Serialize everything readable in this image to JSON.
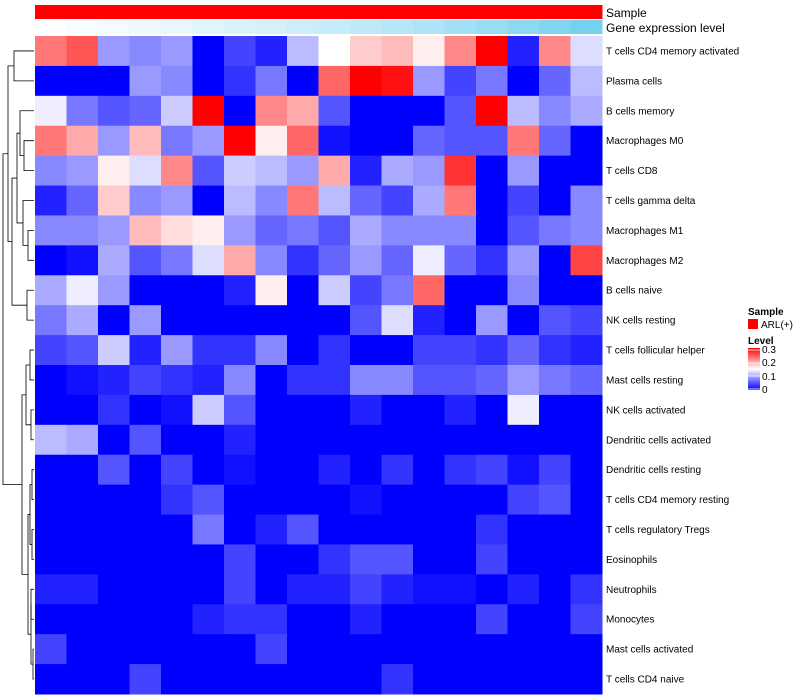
{
  "chart_data": {
    "type": "heatmap",
    "title": "",
    "annotations": [
      {
        "name": "Sample",
        "kind": "categorical",
        "value": "ARL(+)",
        "color": "#ff0000"
      },
      {
        "name": "Gene expression level",
        "kind": "continuous",
        "low_color": "#ffffff",
        "high_color": "#66ccee",
        "values": [
          0.02,
          0.05,
          0.08,
          0.12,
          0.16,
          0.2,
          0.24,
          0.28,
          0.33,
          0.38,
          0.43,
          0.48,
          0.53,
          0.6,
          0.67,
          0.74,
          0.82,
          0.9
        ]
      }
    ],
    "rows": [
      "T cells CD4 memory activated",
      "Plasma cells",
      "B cells memory",
      "Macrophages M0",
      "T cells CD8",
      "T cells gamma delta",
      "Macrophages M1",
      "Macrophages M2",
      "B cells naive",
      "NK cells resting",
      "T cells follicular helper",
      "Mast cells resting",
      "NK cells activated",
      "Dendritic cells activated",
      "Dendritic cells resting",
      "T cells CD4 memory resting",
      "T cells regulatory  Tregs",
      "Eosinophils",
      "Neutrophils",
      "Monocytes",
      "Mast cells activated",
      "T cells CD4 naive"
    ],
    "n_columns": 18,
    "values": [
      [
        0.23,
        0.25,
        0.09,
        0.08,
        0.09,
        0.0,
        0.04,
        0.02,
        0.11,
        0.15,
        0.18,
        0.19,
        0.16,
        0.22,
        0.3,
        0.02,
        0.22,
        0.13
      ],
      [
        0.0,
        0.0,
        0.0,
        0.09,
        0.08,
        0.0,
        0.03,
        0.07,
        0.0,
        0.24,
        0.3,
        0.29,
        0.09,
        0.04,
        0.07,
        0.0,
        0.06,
        0.11
      ],
      [
        0.14,
        0.07,
        0.05,
        0.06,
        0.12,
        0.3,
        0.0,
        0.22,
        0.2,
        0.05,
        0.0,
        0.0,
        0.0,
        0.05,
        0.3,
        0.11,
        0.08,
        0.1
      ],
      [
        0.23,
        0.2,
        0.09,
        0.19,
        0.07,
        0.09,
        0.3,
        0.16,
        0.24,
        0.01,
        0.0,
        0.0,
        0.06,
        0.05,
        0.05,
        0.23,
        0.06,
        0.0
      ],
      [
        0.08,
        0.09,
        0.16,
        0.13,
        0.22,
        0.05,
        0.12,
        0.11,
        0.09,
        0.2,
        0.02,
        0.1,
        0.09,
        0.27,
        0.0,
        0.09,
        0.0,
        0.0
      ],
      [
        0.02,
        0.06,
        0.18,
        0.08,
        0.09,
        0.0,
        0.11,
        0.08,
        0.23,
        0.11,
        0.06,
        0.04,
        0.1,
        0.23,
        0.0,
        0.04,
        0.0,
        0.08
      ],
      [
        0.08,
        0.08,
        0.09,
        0.19,
        0.17,
        0.16,
        0.09,
        0.06,
        0.07,
        0.05,
        0.1,
        0.08,
        0.08,
        0.08,
        0.0,
        0.05,
        0.07,
        0.08
      ],
      [
        0.0,
        0.01,
        0.1,
        0.05,
        0.07,
        0.13,
        0.2,
        0.08,
        0.03,
        0.06,
        0.09,
        0.06,
        0.14,
        0.06,
        0.03,
        0.09,
        0.0,
        0.26
      ],
      [
        0.1,
        0.14,
        0.09,
        0.0,
        0.0,
        0.0,
        0.02,
        0.16,
        0.0,
        0.12,
        0.04,
        0.07,
        0.24,
        0.0,
        0.0,
        0.08,
        0.0,
        0.0
      ],
      [
        0.07,
        0.1,
        0.0,
        0.09,
        0.0,
        0.0,
        0.0,
        0.0,
        0.0,
        0.0,
        0.05,
        0.13,
        0.02,
        0.0,
        0.09,
        0.0,
        0.05,
        0.04
      ],
      [
        0.04,
        0.05,
        0.12,
        0.02,
        0.09,
        0.03,
        0.03,
        0.08,
        0.0,
        0.03,
        0.0,
        0.0,
        0.04,
        0.04,
        0.03,
        0.06,
        0.03,
        0.02
      ],
      [
        0.0,
        0.01,
        0.02,
        0.04,
        0.03,
        0.02,
        0.08,
        0.0,
        0.03,
        0.03,
        0.08,
        0.08,
        0.05,
        0.05,
        0.06,
        0.09,
        0.07,
        0.06
      ],
      [
        0.0,
        0.0,
        0.03,
        0.0,
        0.01,
        0.12,
        0.05,
        0.0,
        0.0,
        0.0,
        0.02,
        0.0,
        0.0,
        0.02,
        0.0,
        0.14,
        0.0,
        0.0
      ],
      [
        0.11,
        0.1,
        0.0,
        0.05,
        0.0,
        0.0,
        0.02,
        0.0,
        0.0,
        0.0,
        0.0,
        0.0,
        0.0,
        0.0,
        0.0,
        0.0,
        0.0,
        0.0
      ],
      [
        0.0,
        0.0,
        0.05,
        0.0,
        0.04,
        0.0,
        0.01,
        0.0,
        0.0,
        0.02,
        0.0,
        0.03,
        0.0,
        0.03,
        0.04,
        0.01,
        0.04,
        0.0
      ],
      [
        0.0,
        0.0,
        0.0,
        0.0,
        0.03,
        0.05,
        0.0,
        0.0,
        0.0,
        0.0,
        0.01,
        0.0,
        0.0,
        0.0,
        0.0,
        0.04,
        0.05,
        0.0
      ],
      [
        0.0,
        0.0,
        0.0,
        0.0,
        0.0,
        0.07,
        0.0,
        0.02,
        0.05,
        0.0,
        0.0,
        0.0,
        0.0,
        0.0,
        0.03,
        0.0,
        0.0,
        0.0
      ],
      [
        0.0,
        0.0,
        0.0,
        0.0,
        0.0,
        0.0,
        0.04,
        0.0,
        0.0,
        0.03,
        0.05,
        0.05,
        0.0,
        0.0,
        0.04,
        0.0,
        0.0,
        0.0
      ],
      [
        0.02,
        0.02,
        0.0,
        0.0,
        0.0,
        0.0,
        0.04,
        0.0,
        0.02,
        0.02,
        0.04,
        0.02,
        0.01,
        0.01,
        0.0,
        0.02,
        0.0,
        0.03
      ],
      [
        0.0,
        0.0,
        0.0,
        0.0,
        0.0,
        0.02,
        0.03,
        0.03,
        0.0,
        0.0,
        0.02,
        0.0,
        0.0,
        0.0,
        0.04,
        0.0,
        0.0,
        0.04
      ],
      [
        0.04,
        0.0,
        0.0,
        0.0,
        0.0,
        0.0,
        0.0,
        0.04,
        0.0,
        0.0,
        0.0,
        0.0,
        0.0,
        0.0,
        0.0,
        0.0,
        0.0,
        0.0
      ],
      [
        0.0,
        0.0,
        0.0,
        0.04,
        0.0,
        0.0,
        0.0,
        0.0,
        0.0,
        0.0,
        0.0,
        0.03,
        0.0,
        0.0,
        0.0,
        0.0,
        0.0,
        0.0
      ]
    ],
    "color_scale": {
      "min": 0,
      "mid": 0.15,
      "max": 0.3,
      "low_color": "#0000ff",
      "mid_color": "#ffffff",
      "high_color": "#ff0000"
    },
    "dendrogram": {
      "side": "left",
      "leaf_order": "rows"
    },
    "legends": {
      "sample": {
        "title": "Sample",
        "entries": [
          {
            "label": "ARL(+)",
            "color": "#ff0000"
          }
        ]
      },
      "level": {
        "title": "Level",
        "ticks": [
          "0.3",
          "0.2",
          "0.1",
          "0"
        ]
      }
    }
  }
}
